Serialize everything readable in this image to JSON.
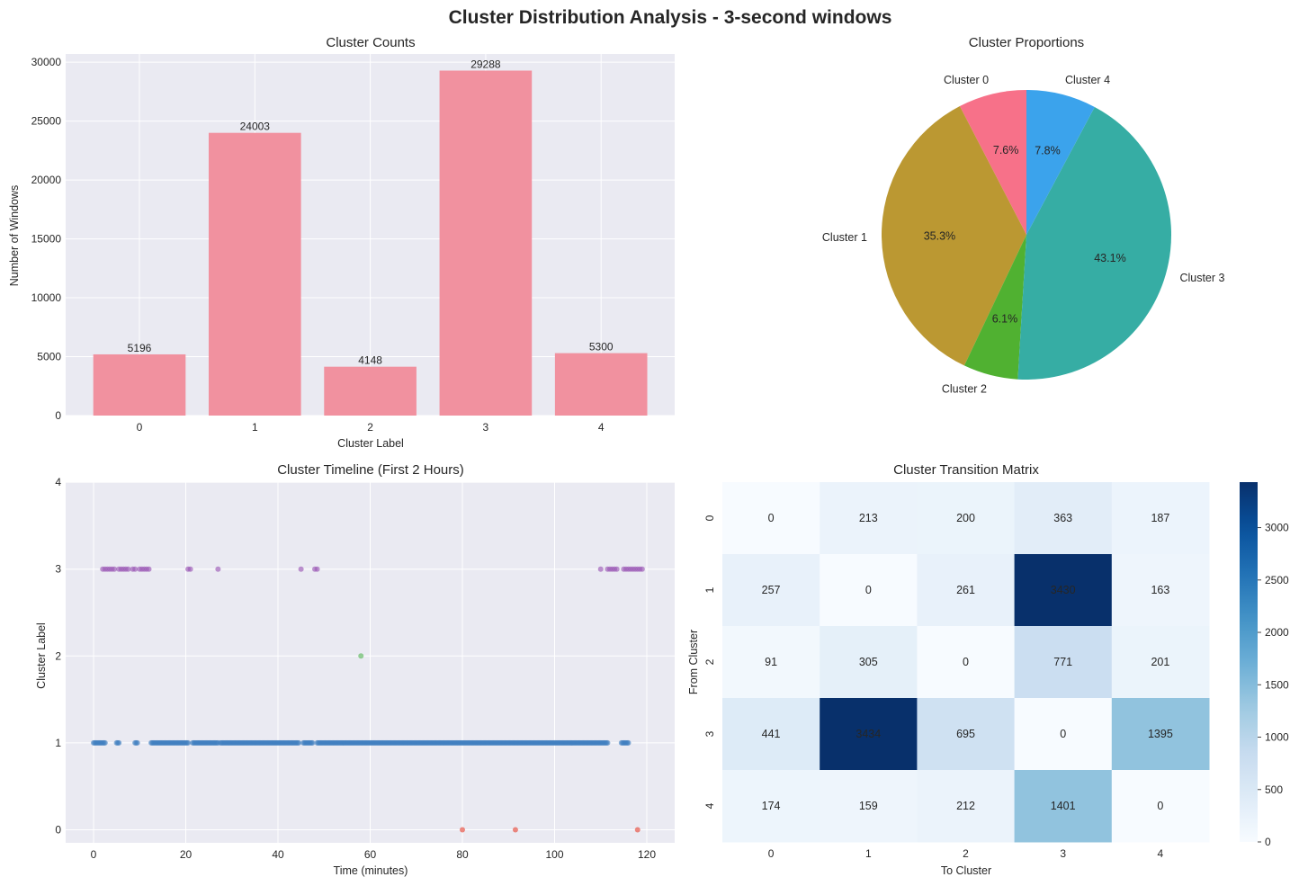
{
  "suptitle": "Cluster Distribution Analysis - 3-second windows",
  "chart_data": [
    {
      "type": "bar",
      "title": "Cluster Counts",
      "xlabel": "Cluster Label",
      "ylabel": "Number of Windows",
      "categories": [
        "0",
        "1",
        "2",
        "3",
        "4"
      ],
      "values": [
        5196,
        24003,
        4148,
        29288,
        5300
      ],
      "data_labels": [
        "5196",
        "24003",
        "4148",
        "29288",
        "5300"
      ],
      "ylim": [
        0,
        30700
      ],
      "yticks": [
        0,
        5000,
        10000,
        15000,
        20000,
        25000,
        30000
      ],
      "color": "#f1919f",
      "grid": true
    },
    {
      "type": "pie",
      "title": "Cluster Proportions",
      "labels": [
        "Cluster 0",
        "Cluster 1",
        "Cluster 2",
        "Cluster 3",
        "Cluster 4"
      ],
      "values": [
        7.6,
        35.3,
        6.1,
        43.1,
        7.8
      ],
      "pct_labels": [
        "7.6%",
        "35.3%",
        "6.1%",
        "43.1%",
        "7.8%"
      ],
      "colors": [
        "#f77189",
        "#bb9832",
        "#50b131",
        "#36ada4",
        "#3ba3ec"
      ],
      "start_angle_deg": 90
    },
    {
      "type": "scatter",
      "title": "Cluster Timeline (First 2 Hours)",
      "xlabel": "Time (minutes)",
      "ylabel": "Cluster Label",
      "xlim": [
        -5,
        125
      ],
      "ylim": [
        -0.15,
        4
      ],
      "xticks": [
        0,
        20,
        40,
        60,
        80,
        100,
        120
      ],
      "yticks": [
        0,
        1,
        2,
        3,
        4
      ],
      "grid": true,
      "series": [
        {
          "cluster": 3,
          "color": "#9b59b6",
          "x": [
            2,
            2.5,
            3,
            3.5,
            4,
            4.5,
            5.5,
            6,
            6.5,
            7,
            7.5,
            8.5,
            9,
            10,
            10.5,
            11,
            11.5,
            12,
            20.5,
            21,
            27,
            45,
            48,
            48.5,
            110,
            111.5,
            112,
            112.5,
            113,
            113.5,
            115,
            115.5,
            116,
            116.5,
            117,
            117.5,
            118,
            118.5,
            119
          ]
        },
        {
          "cluster": 2,
          "color": "#5cb85c",
          "x": [
            58
          ]
        },
        {
          "cluster": 0,
          "color": "#e74c3c",
          "x": [
            80,
            91.5,
            118
          ]
        },
        {
          "cluster": 1,
          "color": "#3f7fbf",
          "segments": [
            [
              0,
              2.5
            ],
            [
              5,
              5.5
            ],
            [
              9,
              9.5
            ],
            [
              12.5,
              20.5
            ],
            [
              21.5,
              27
            ],
            [
              27.5,
              44.5
            ],
            [
              45.5,
              47.5
            ],
            [
              48.5,
              111.5
            ],
            [
              114.5,
              116
            ]
          ]
        }
      ]
    },
    {
      "type": "heatmap",
      "title": "Cluster Transition Matrix",
      "xlabel": "To Cluster",
      "ylabel": "From Cluster",
      "x_categories": [
        "0",
        "1",
        "2",
        "3",
        "4"
      ],
      "y_categories": [
        "0",
        "1",
        "2",
        "3",
        "4"
      ],
      "values": [
        [
          0,
          213,
          200,
          363,
          187
        ],
        [
          257,
          0,
          261,
          3430,
          163
        ],
        [
          91,
          305,
          0,
          771,
          201
        ],
        [
          441,
          3434,
          695,
          0,
          1395
        ],
        [
          174,
          159,
          212,
          1401,
          0
        ]
      ],
      "colormap": "Blues",
      "vmin": 0,
      "vmax": 3434,
      "colorbar_ticks": [
        0,
        500,
        1000,
        1500,
        2000,
        2500,
        3000
      ]
    }
  ]
}
